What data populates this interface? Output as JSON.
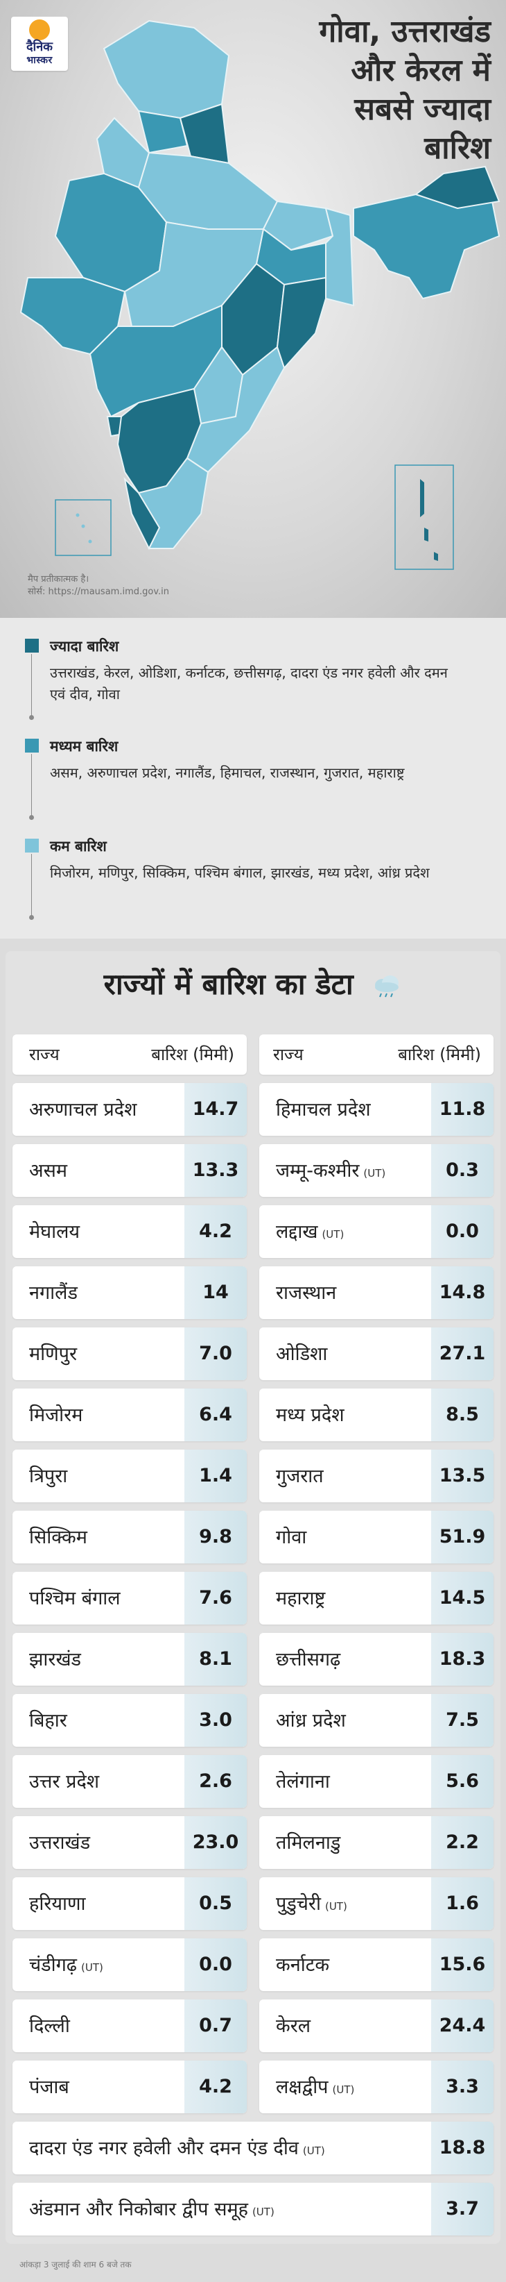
{
  "brand": {
    "line1": "दैनिक",
    "line2": "भास्कर"
  },
  "title": "गोवा, उत्तराखंड\nऔर केरल में\nसबसे ज्यादा\nबारिश",
  "map_note": {
    "line1": "मैप प्रतीकात्मक है।",
    "line2": "सोर्स: https://mausam.imd.gov.in"
  },
  "colors": {
    "high": "#1e6f85",
    "medium": "#3a98b3",
    "low": "#7fc4da",
    "sea": "#d8d8d8",
    "value_bg": "#d3e6ec"
  },
  "legend": [
    {
      "label": "ज्यादा बारिश",
      "color": "#1e6f85",
      "states": "उत्तराखंड, केरल, ओडिशा, कर्नाटक, छत्तीसगढ़, दादरा एंड नगर हवेली और दमन एवं दीव, गोवा"
    },
    {
      "label": "मध्यम बारिश",
      "color": "#3a98b3",
      "states": "असम, अरुणाचल प्रदेश, नगालैंड, हिमाचल, राजस्थान, गुजरात, महाराष्ट्र"
    },
    {
      "label": "कम बारिश",
      "color": "#7fc4da",
      "states": "मिजोरम, मणिपुर, सिक्किम, पश्चिम बंगाल, झारखंड, मध्य प्रदेश, आंध्र प्रदेश"
    }
  ],
  "table": {
    "title": "राज्यों में बारिश का डेटा",
    "title_icon": "rain-cloud-icon",
    "header_state": "राज्य",
    "header_rain": "बारिश (मिमी)",
    "ut_label": "(UT)",
    "left": [
      {
        "state": "अरुणाचल प्रदेश",
        "value": "14.7",
        "ut": false
      },
      {
        "state": "असम",
        "value": "13.3",
        "ut": false
      },
      {
        "state": "मेघालय",
        "value": "4.2",
        "ut": false
      },
      {
        "state": "नगालैंड",
        "value": "14",
        "ut": false
      },
      {
        "state": "मणिपुर",
        "value": "7.0",
        "ut": false
      },
      {
        "state": "मिजोरम",
        "value": "6.4",
        "ut": false
      },
      {
        "state": "त्रिपुरा",
        "value": "1.4",
        "ut": false
      },
      {
        "state": "सिक्किम",
        "value": "9.8",
        "ut": false
      },
      {
        "state": "पश्चिम बंगाल",
        "value": "7.6",
        "ut": false
      },
      {
        "state": "झारखंड",
        "value": "8.1",
        "ut": false
      },
      {
        "state": "बिहार",
        "value": "3.0",
        "ut": false
      },
      {
        "state": "उत्तर प्रदेश",
        "value": "2.6",
        "ut": false
      },
      {
        "state": "उत्तराखंड",
        "value": "23.0",
        "ut": false
      },
      {
        "state": "हरियाणा",
        "value": "0.5",
        "ut": false
      },
      {
        "state": "चंडीगढ़",
        "value": "0.0",
        "ut": true
      },
      {
        "state": "दिल्ली",
        "value": "0.7",
        "ut": false
      },
      {
        "state": "पंजाब",
        "value": "4.2",
        "ut": false
      }
    ],
    "right": [
      {
        "state": "हिमाचल प्रदेश",
        "value": "11.8",
        "ut": false
      },
      {
        "state": "जम्मू-कश्मीर",
        "value": "0.3",
        "ut": true
      },
      {
        "state": "लद्दाख",
        "value": "0.0",
        "ut": true
      },
      {
        "state": "राजस्थान",
        "value": "14.8",
        "ut": false
      },
      {
        "state": "ओडिशा",
        "value": "27.1",
        "ut": false
      },
      {
        "state": "मध्य प्रदेश",
        "value": "8.5",
        "ut": false
      },
      {
        "state": "गुजरात",
        "value": "13.5",
        "ut": false
      },
      {
        "state": "गोवा",
        "value": "51.9",
        "ut": false
      },
      {
        "state": "महाराष्ट्र",
        "value": "14.5",
        "ut": false
      },
      {
        "state": "छत्तीसगढ़",
        "value": "18.3",
        "ut": false
      },
      {
        "state": "आंध्र प्रदेश",
        "value": "7.5",
        "ut": false
      },
      {
        "state": "तेलंगाना",
        "value": "5.6",
        "ut": false
      },
      {
        "state": "तमिलनाडु",
        "value": "2.2",
        "ut": false
      },
      {
        "state": "पुडुचेरी",
        "value": "1.6",
        "ut": true
      },
      {
        "state": "कर्नाटक",
        "value": "15.6",
        "ut": false
      },
      {
        "state": "केरल",
        "value": "24.4",
        "ut": false
      },
      {
        "state": "लक्षद्वीप",
        "value": "3.3",
        "ut": true
      }
    ],
    "full": [
      {
        "state": "दादरा एंड नगर हवेली और दमन एंड दीव",
        "value": "18.8",
        "ut": true
      },
      {
        "state": "अंडमान और निकोबार द्वीप समूह",
        "value": "3.7",
        "ut": true
      }
    ]
  },
  "footer": "आंकड़ा 3 जुलाई की शाम 6 बजे तक"
}
